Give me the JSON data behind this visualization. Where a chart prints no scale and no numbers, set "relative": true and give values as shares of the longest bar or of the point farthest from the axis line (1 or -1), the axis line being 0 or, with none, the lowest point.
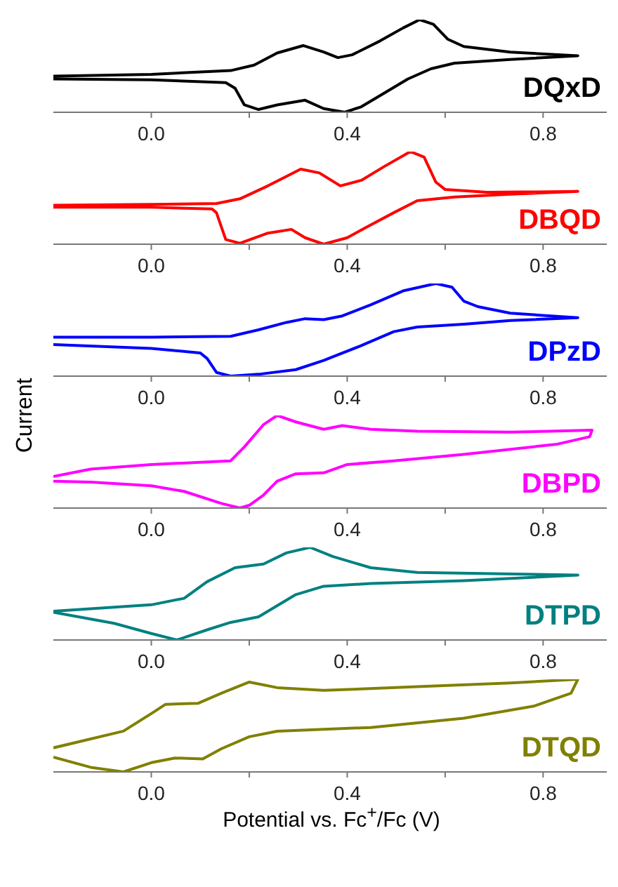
{
  "chart_data": [
    {
      "type": "line",
      "relative": true,
      "marker": "none",
      "xlim": [
        -0.2,
        0.93
      ],
      "xticks": [
        {
          "value": 0,
          "label": "0.0"
        },
        {
          "value": 0.2,
          "label": null
        },
        {
          "value": 0.4,
          "label": "0.4"
        },
        {
          "value": 0.6,
          "label": null
        },
        {
          "value": 0.8,
          "label": "0.8"
        }
      ],
      "series": [
        {
          "name": "DQxD",
          "color": "#000000",
          "x": [
            -0.2,
            0.0,
            0.162,
            0.21,
            0.257,
            0.31,
            0.352,
            0.381,
            0.41,
            0.467,
            0.514,
            0.548,
            0.576,
            0.605,
            0.638,
            0.733,
            0.871,
            0.733,
            0.619,
            0.571,
            0.524,
            0.467,
            0.429,
            0.395,
            0.352,
            0.314,
            0.257,
            0.219,
            0.19,
            0.171,
            0.152,
            0.0,
            -0.2
          ],
          "values": [
            0.39,
            0.41,
            0.45,
            0.51,
            0.64,
            0.72,
            0.65,
            0.59,
            0.62,
            0.77,
            0.91,
            1.0,
            0.95,
            0.79,
            0.71,
            0.65,
            0.61,
            0.57,
            0.53,
            0.47,
            0.36,
            0.18,
            0.06,
            0,
            0.04,
            0.13,
            0.08,
            0.03,
            0.08,
            0.26,
            0.32,
            0.35,
            0.36
          ]
        }
      ]
    },
    {
      "type": "line",
      "relative": true,
      "marker": "none",
      "xlim": [
        -0.2,
        0.93
      ],
      "xticks": [
        {
          "value": 0,
          "label": "0.0"
        },
        {
          "value": 0.2,
          "label": null
        },
        {
          "value": 0.4,
          "label": "0.4"
        },
        {
          "value": 0.6,
          "label": null
        },
        {
          "value": 0.8,
          "label": "0.8"
        }
      ],
      "series": [
        {
          "name": "DBQD",
          "color": "#ff0000",
          "x": [
            -0.2,
            0.0,
            0.133,
            0.181,
            0.238,
            0.305,
            0.343,
            0.386,
            0.429,
            0.476,
            0.529,
            0.557,
            0.581,
            0.6,
            0.686,
            0.871,
            0.733,
            0.619,
            0.543,
            0.495,
            0.438,
            0.4,
            0.352,
            0.314,
            0.286,
            0.238,
            0.181,
            0.152,
            0.133,
            0.124,
            0.0,
            -0.2
          ],
          "values": [
            0.42,
            0.43,
            0.44,
            0.49,
            0.63,
            0.81,
            0.77,
            0.63,
            0.69,
            0.84,
            1.0,
            0.94,
            0.67,
            0.59,
            0.56,
            0.57,
            0.54,
            0.51,
            0.47,
            0.34,
            0.18,
            0.07,
            0,
            0.07,
            0.16,
            0.12,
            0.01,
            0.05,
            0.34,
            0.38,
            0.4,
            0.4
          ]
        }
      ]
    },
    {
      "type": "line",
      "relative": true,
      "marker": "none",
      "ylabel": "Current",
      "xlim": [
        -0.2,
        0.93
      ],
      "xticks": [
        {
          "value": 0,
          "label": "0.0"
        },
        {
          "value": 0.2,
          "label": null
        },
        {
          "value": 0.4,
          "label": "0.4"
        },
        {
          "value": 0.6,
          "label": null
        },
        {
          "value": 0.8,
          "label": "0.8"
        }
      ],
      "series": [
        {
          "name": "DPzD",
          "color": "#0000ff",
          "x": [
            -0.2,
            0.0,
            0.162,
            0.219,
            0.276,
            0.314,
            0.352,
            0.39,
            0.448,
            0.514,
            0.581,
            0.614,
            0.638,
            0.667,
            0.733,
            0.871,
            0.733,
            0.638,
            0.543,
            0.495,
            0.429,
            0.352,
            0.295,
            0.219,
            0.162,
            0.133,
            0.114,
            0.1,
            0.0,
            -0.2
          ],
          "values": [
            0.42,
            0.42,
            0.43,
            0.5,
            0.58,
            0.62,
            0.61,
            0.65,
            0.77,
            0.92,
            1.0,
            0.96,
            0.81,
            0.75,
            0.68,
            0.63,
            0.6,
            0.56,
            0.53,
            0.48,
            0.33,
            0.17,
            0.07,
            0.02,
            0,
            0.04,
            0.19,
            0.25,
            0.3,
            0.34
          ]
        }
      ]
    },
    {
      "type": "line",
      "relative": true,
      "marker": "none",
      "xlim": [
        -0.2,
        0.93
      ],
      "xticks": [
        {
          "value": 0,
          "label": "0.0"
        },
        {
          "value": 0.2,
          "label": null
        },
        {
          "value": 0.4,
          "label": "0.4"
        },
        {
          "value": 0.6,
          "label": null
        },
        {
          "value": 0.8,
          "label": "0.8"
        }
      ],
      "series": [
        {
          "name": "DBPD",
          "color": "#ff00ff",
          "x": [
            -0.2,
            -0.124,
            0.0,
            0.162,
            0.19,
            0.229,
            0.257,
            0.295,
            0.352,
            0.39,
            0.448,
            0.543,
            0.733,
            0.9,
            0.895,
            0.829,
            0.638,
            0.495,
            0.4,
            0.352,
            0.295,
            0.257,
            0.229,
            0.2,
            0.181,
            0.143,
            0.067,
            0.0,
            -0.124,
            -0.2
          ],
          "values": [
            0.34,
            0.42,
            0.47,
            0.51,
            0.66,
            0.9,
            1.0,
            0.93,
            0.85,
            0.89,
            0.85,
            0.83,
            0.82,
            0.84,
            0.77,
            0.69,
            0.58,
            0.51,
            0.47,
            0.38,
            0.37,
            0.29,
            0.14,
            0.03,
            0,
            0.05,
            0.18,
            0.24,
            0.28,
            0.29
          ]
        }
      ]
    },
    {
      "type": "line",
      "relative": true,
      "marker": "none",
      "xlim": [
        -0.2,
        0.93
      ],
      "xticks": [
        {
          "value": 0,
          "label": "0.0"
        },
        {
          "value": 0.2,
          "label": null
        },
        {
          "value": 0.4,
          "label": "0.4"
        },
        {
          "value": 0.6,
          "label": null
        },
        {
          "value": 0.8,
          "label": "0.8"
        }
      ],
      "series": [
        {
          "name": "DTPD",
          "color": "#008080",
          "x": [
            -0.2,
            0.0,
            0.067,
            0.114,
            0.171,
            0.229,
            0.276,
            0.324,
            0.371,
            0.448,
            0.543,
            0.871,
            0.638,
            0.448,
            0.352,
            0.295,
            0.219,
            0.162,
            0.114,
            0.052,
            0.0,
            -0.076,
            -0.2
          ],
          "values": [
            0.31,
            0.38,
            0.45,
            0.63,
            0.78,
            0.82,
            0.94,
            1.0,
            0.9,
            0.78,
            0.73,
            0.7,
            0.64,
            0.61,
            0.58,
            0.49,
            0.25,
            0.19,
            0.11,
            0,
            0.07,
            0.18,
            0.3
          ]
        }
      ]
    },
    {
      "type": "line",
      "relative": true,
      "marker": "none",
      "xlabel": "Potential vs. Fc$^{+}$/Fc (V)",
      "xlim": [
        -0.2,
        0.93
      ],
      "xticks": [
        {
          "value": 0,
          "label": "0.0"
        },
        {
          "value": 0.2,
          "label": null
        },
        {
          "value": 0.4,
          "label": "0.4"
        },
        {
          "value": 0.6,
          "label": null
        },
        {
          "value": 0.8,
          "label": "0.8"
        }
      ],
      "series": [
        {
          "name": "DTQD",
          "color": "#808000",
          "x": [
            -0.2,
            -0.057,
            0.0,
            0.029,
            0.095,
            0.143,
            0.2,
            0.257,
            0.352,
            0.543,
            0.733,
            0.871,
            0.857,
            0.781,
            0.638,
            0.448,
            0.257,
            0.2,
            0.143,
            0.105,
            0.048,
            0.0,
            -0.057,
            -0.124,
            -0.2
          ],
          "values": [
            0.26,
            0.44,
            0.63,
            0.73,
            0.74,
            0.85,
            0.97,
            0.91,
            0.88,
            0.92,
            0.96,
            1.0,
            0.85,
            0.71,
            0.58,
            0.48,
            0.44,
            0.38,
            0.25,
            0.14,
            0.15,
            0.1,
            0,
            0.05,
            0.16
          ]
        }
      ]
    }
  ]
}
